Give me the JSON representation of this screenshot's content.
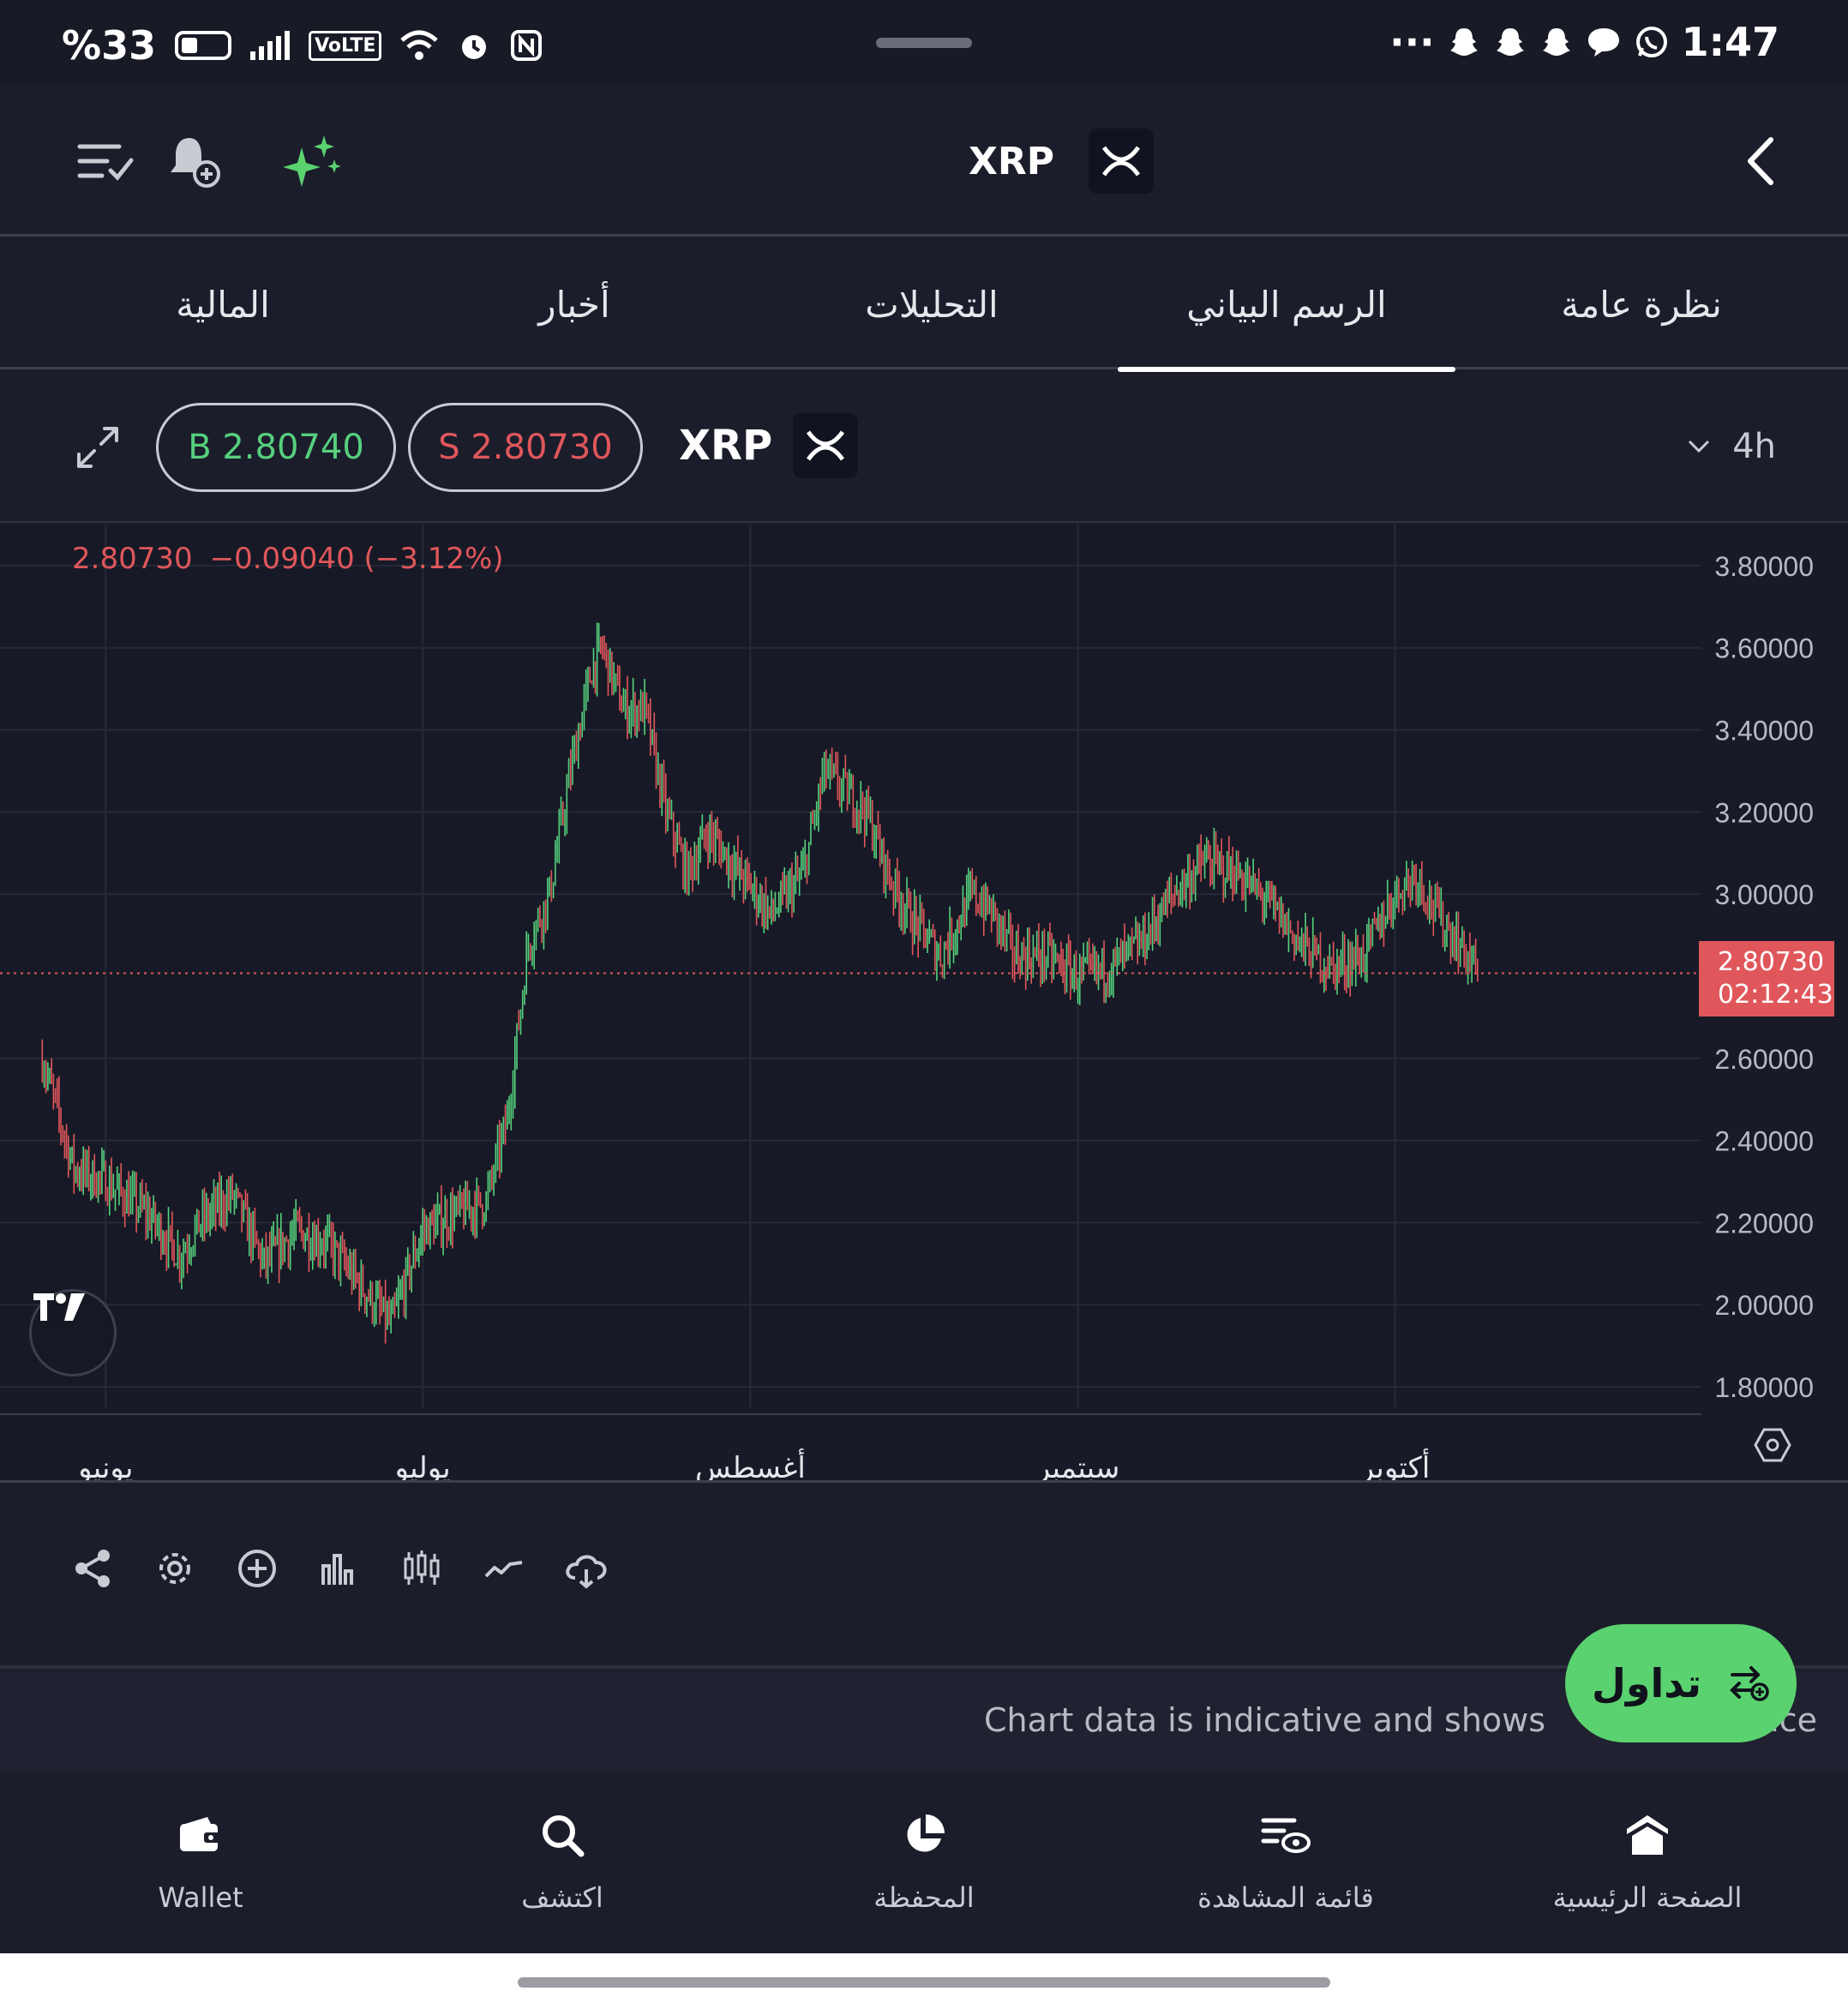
{
  "status_bar": {
    "battery": "%33",
    "volte": "VoLTE",
    "time": "1:47",
    "more": "···"
  },
  "header": {
    "symbol": "XRP",
    "icons": [
      "menu-check-icon",
      "bell-plus-icon",
      "sparkle-icon",
      "back-chevron-icon"
    ]
  },
  "tabs": [
    {
      "label": "نظرة عامة",
      "active": false
    },
    {
      "label": "الرسم البياني",
      "active": true
    },
    {
      "label": "التحليلات",
      "active": false
    },
    {
      "label": "أخبار",
      "active": false
    },
    {
      "label": "المالية",
      "active": false
    }
  ],
  "chart_toolbar": {
    "buy_label": "B 2.80740",
    "sell_label": "S 2.80730",
    "symbol": "XRP",
    "interval": "4h"
  },
  "colors": {
    "up": "#56d07d",
    "down": "#e0575b",
    "accent": "#5ad26f",
    "background": "#1b1d2b"
  },
  "chart_readout": {
    "price": "2.80730",
    "change": "−0.09040 (−3.12%)"
  },
  "chart_data": {
    "type": "line",
    "y_tick_labels": [
      "3.80000",
      "3.60000",
      "3.40000",
      "3.20000",
      "3.00000",
      "2.60000",
      "2.40000",
      "2.20000",
      "2.00000",
      "1.80000"
    ],
    "ylim": [
      1.8,
      3.8
    ],
    "x_tick_labels": [
      "يونيو",
      "يوليو",
      "أغسطس",
      "سبتمبر",
      "أكتوبر"
    ],
    "last_price_label": "2.80730",
    "countdown_label": "02:12:43",
    "last_price": 2.8073,
    "series": [
      {
        "x": [
          "2025-05-26",
          "2025-05-29",
          "2025-06-01",
          "2025-06-05",
          "2025-06-08",
          "2025-06-10",
          "2025-06-13",
          "2025-06-16",
          "2025-06-19",
          "2025-06-22",
          "2025-06-25",
          "2025-06-28",
          "2025-07-01",
          "2025-07-04",
          "2025-07-07",
          "2025-07-09",
          "2025-07-11",
          "2025-07-13",
          "2025-07-15",
          "2025-07-17",
          "2025-07-18",
          "2025-07-20",
          "2025-07-22",
          "2025-07-24",
          "2025-07-26",
          "2025-07-28",
          "2025-07-31",
          "2025-08-03",
          "2025-08-06",
          "2025-08-08",
          "2025-08-10",
          "2025-08-12",
          "2025-08-14",
          "2025-08-16",
          "2025-08-19",
          "2025-08-22",
          "2025-08-24",
          "2025-08-26",
          "2025-08-29",
          "2025-09-01",
          "2025-09-04",
          "2025-09-07",
          "2025-09-10",
          "2025-09-13",
          "2025-09-16",
          "2025-09-19",
          "2025-09-22",
          "2025-09-25",
          "2025-09-28",
          "2025-10-01",
          "2025-10-03",
          "2025-10-05",
          "2025-10-07",
          "2025-10-09"
        ],
        "values": [
          2.6,
          2.33,
          2.3,
          2.22,
          2.12,
          2.2,
          2.27,
          2.1,
          2.18,
          2.15,
          2.05,
          1.95,
          2.18,
          2.22,
          2.25,
          2.45,
          2.88,
          3.0,
          3.3,
          3.55,
          3.6,
          3.45,
          3.45,
          3.2,
          3.05,
          3.15,
          3.05,
          2.95,
          3.05,
          3.3,
          3.25,
          3.2,
          3.05,
          2.95,
          2.85,
          3.0,
          2.95,
          2.85,
          2.85,
          2.8,
          2.82,
          2.88,
          3.0,
          3.08,
          3.05,
          2.98,
          2.88,
          2.82,
          2.85,
          3.0,
          3.05,
          2.95,
          2.88,
          2.8073
        ]
      }
    ],
    "grid": true
  },
  "bottom_tools": [
    "share-icon",
    "settings-icon",
    "add-indicator-icon",
    "bar-chart-icon",
    "candles-icon",
    "line-chart-icon",
    "cloud-sync-icon"
  ],
  "disclaimer": "Chart data is indicative and shows",
  "disclaimer_tail": "ice",
  "trade_button": "تداول",
  "bottom_nav": [
    {
      "label": "Wallet",
      "icon": "wallet-icon"
    },
    {
      "label": "اكتشف",
      "icon": "search-icon"
    },
    {
      "label": "المحفظة",
      "icon": "pie-chart-icon"
    },
    {
      "label": "قائمة المشاهدة",
      "icon": "watchlist-icon"
    },
    {
      "label": "الصفحة الرئيسية",
      "icon": "home-icon"
    }
  ]
}
